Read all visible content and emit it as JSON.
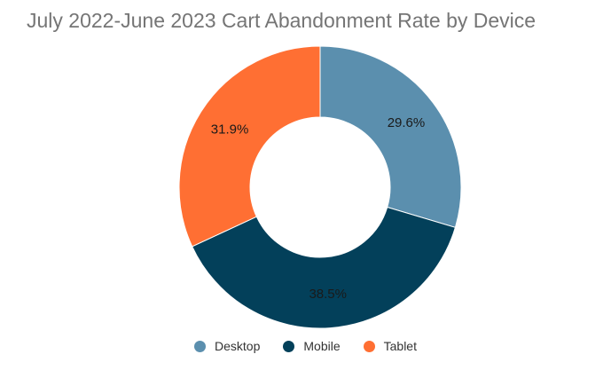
{
  "chart_data": {
    "type": "pie",
    "title": "July 2022-June 2023 Cart Abandonment Rate by Device",
    "donut": true,
    "categories": [
      "Desktop",
      "Mobile",
      "Tablet"
    ],
    "values": [
      29.6,
      38.5,
      31.9
    ],
    "value_labels": [
      "29.6%",
      "38.5%",
      "31.9%"
    ],
    "colors": [
      "#5b8fae",
      "#03405a",
      "#ff6f33"
    ],
    "legend_position": "bottom"
  }
}
